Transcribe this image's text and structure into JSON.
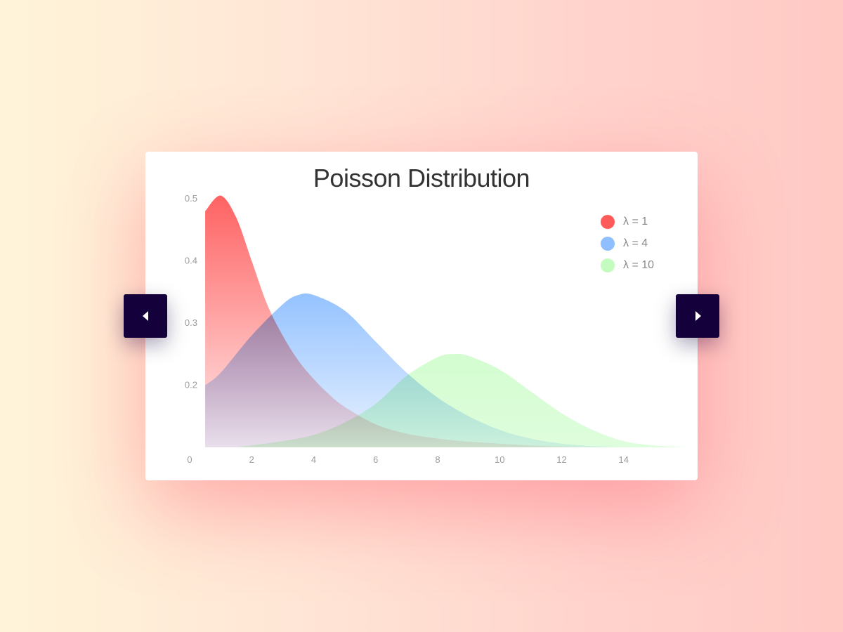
{
  "chart_data": {
    "type": "area",
    "title": "Poisson Distribution",
    "xlabel": "",
    "ylabel": "",
    "xlim": [
      0,
      16
    ],
    "ylim": [
      0.1,
      0.5
    ],
    "x_ticks": [
      "0",
      "2",
      "4",
      "6",
      "8",
      "10",
      "12",
      "14"
    ],
    "y_ticks": [
      "0.2",
      "0.3",
      "0.4",
      "0.5"
    ],
    "grid": false,
    "legend_position": "top-right",
    "series": [
      {
        "name": "λ = 1",
        "color": "#ff5a5a",
        "x": [
          0.5,
          1.0,
          1.5,
          2.0,
          2.5,
          3.0,
          3.5,
          4.0,
          4.5,
          5.0,
          6.0,
          7.0,
          8.0,
          9.0,
          10.0,
          11.0,
          12.0,
          13.0
        ],
        "y": [
          0.48,
          0.505,
          0.47,
          0.4,
          0.33,
          0.28,
          0.24,
          0.21,
          0.185,
          0.165,
          0.137,
          0.122,
          0.114,
          0.109,
          0.106,
          0.103,
          0.101,
          0.1
        ]
      },
      {
        "name": "λ = 4",
        "color": "#8fbfff",
        "x": [
          0.5,
          1.0,
          2.0,
          3.0,
          3.5,
          4.0,
          5.0,
          6.0,
          7.0,
          8.0,
          9.0,
          10.0,
          11.0,
          12.0,
          13.0,
          14.0,
          15.0
        ],
        "y": [
          0.2,
          0.22,
          0.28,
          0.33,
          0.345,
          0.345,
          0.32,
          0.27,
          0.22,
          0.18,
          0.15,
          0.128,
          0.114,
          0.106,
          0.102,
          0.1,
          0.1
        ]
      },
      {
        "name": "λ = 10",
        "color": "#c4fcc0",
        "x": [
          1.5,
          3.0,
          4.0,
          5.0,
          6.0,
          7.0,
          8.0,
          8.5,
          9.0,
          10.0,
          11.0,
          12.0,
          13.0,
          14.0,
          15.0,
          16.0
        ],
        "y": [
          0.1,
          0.11,
          0.12,
          0.14,
          0.17,
          0.215,
          0.245,
          0.25,
          0.247,
          0.225,
          0.19,
          0.155,
          0.128,
          0.11,
          0.103,
          0.1
        ]
      }
    ]
  },
  "navigation": {
    "prev_icon": "arrow-left-icon",
    "next_icon": "arrow-right-icon"
  }
}
